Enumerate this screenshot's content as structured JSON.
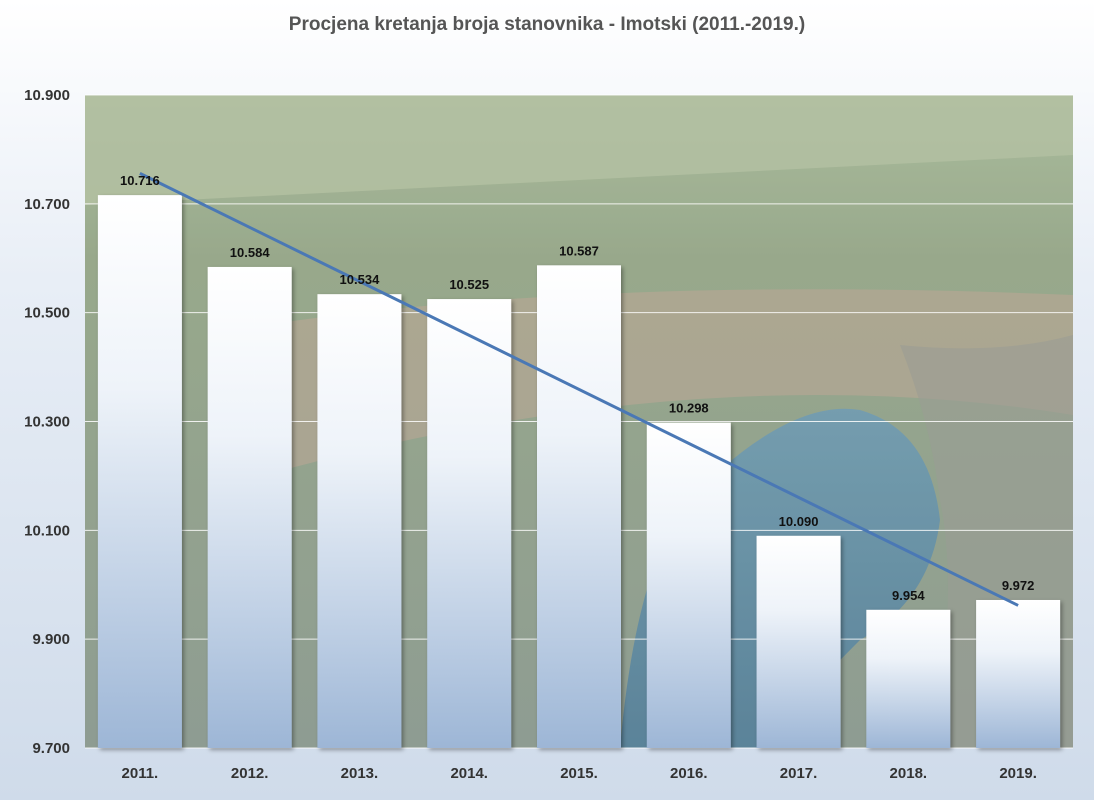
{
  "chart_data": {
    "type": "bar",
    "title": "Procjena kretanja broja stanovnika - Imotski (2011.-2019.)",
    "xlabel": "",
    "ylabel": "",
    "categories": [
      "2011.",
      "2012.",
      "2013.",
      "2014.",
      "2015.",
      "2016.",
      "2017.",
      "2018.",
      "2019."
    ],
    "values": [
      10716,
      10584,
      10534,
      10525,
      10587,
      10298,
      10090,
      9954,
      9972
    ],
    "value_labels": [
      "10.716",
      "10.584",
      "10.534",
      "10.525",
      "10.587",
      "10.298",
      "10.090",
      "9.954",
      "9.972"
    ],
    "ylim": [
      9700,
      10900
    ],
    "yticks": [
      9700,
      9900,
      10100,
      10300,
      10500,
      10700,
      10900
    ],
    "ytick_labels": [
      "9.700",
      "9.900",
      "10.100",
      "10.300",
      "10.500",
      "10.700",
      "10.900"
    ],
    "trendline": {
      "type": "linear",
      "start": 10756,
      "end": 9962,
      "color": "#4a78b5"
    },
    "grid": true,
    "legend": "none",
    "colors": {
      "bar_top": "#ffffff",
      "bar_bottom": "#9db6d6",
      "trend": "#4a78b5",
      "grid": "#ffffff"
    },
    "background": "aerial photo of town and lake"
  }
}
